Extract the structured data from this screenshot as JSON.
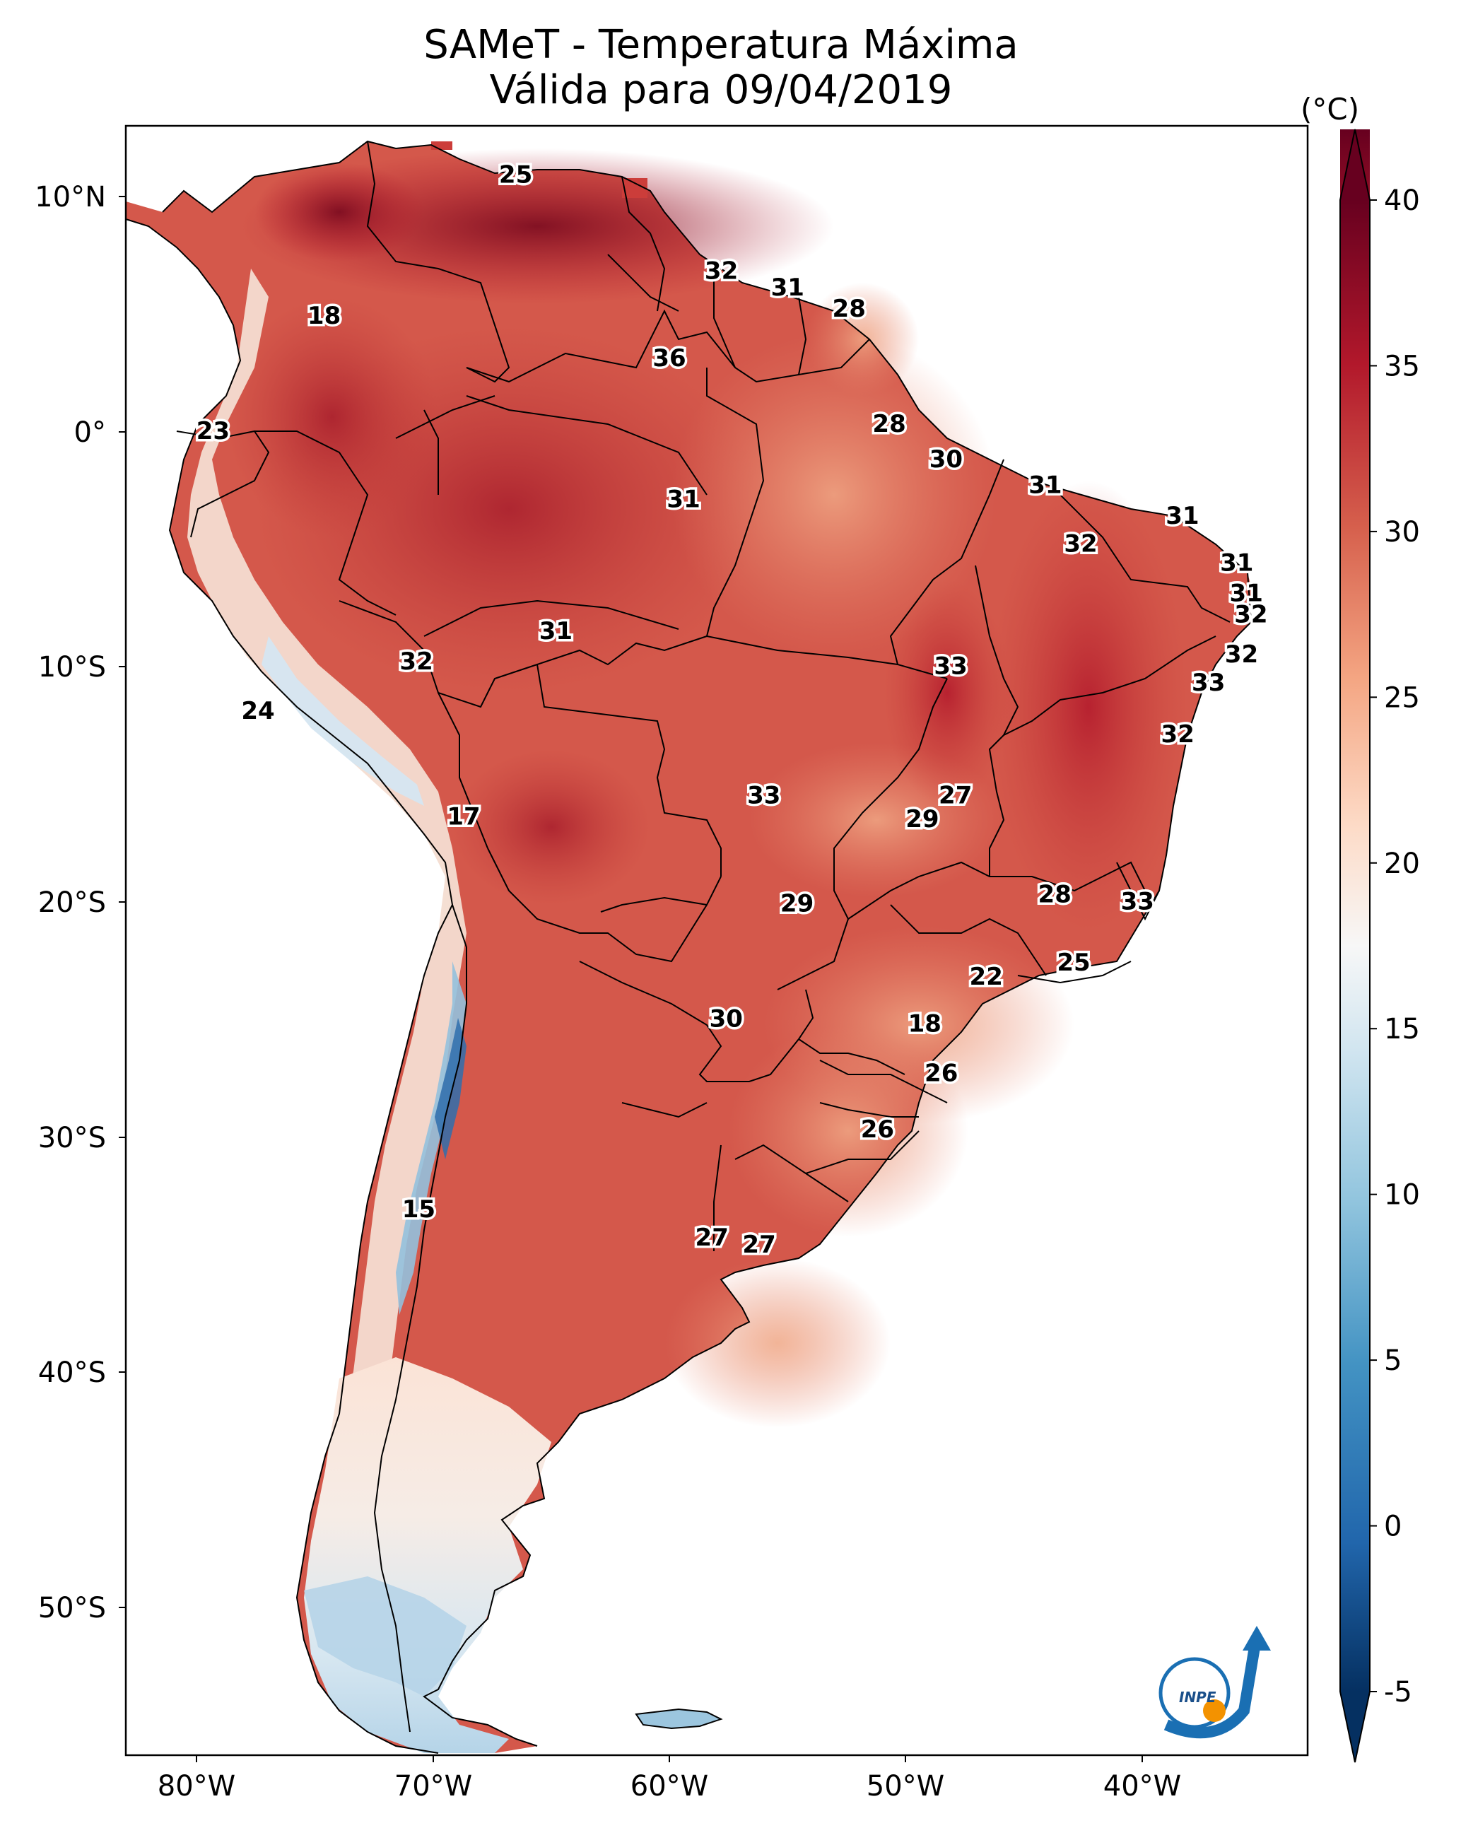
{
  "title": "SAMeT - Temperatura Máxima",
  "subtitle": "Válida para 09/04/2019",
  "colorbar": {
    "unit_label": "(°C)",
    "ticks": [
      "40",
      "35",
      "30",
      "25",
      "20",
      "15",
      "10",
      "5",
      "0",
      "-5"
    ],
    "range": [
      -5,
      40
    ],
    "colormap": "RdBu_r",
    "extend": "both"
  },
  "axes": {
    "lat_labels": [
      "10°N",
      "0°",
      "10°S",
      "20°S",
      "30°S",
      "40°S",
      "50°S"
    ],
    "lon_labels": [
      "80°W",
      "70°W",
      "60°W",
      "50°W",
      "40°W"
    ],
    "lon_range": [
      -83,
      -33
    ],
    "lat_range": [
      -57,
      13
    ]
  },
  "logo": {
    "text": "INPE"
  },
  "chart_data": {
    "type": "heatmap",
    "title": "SAMeT - Temperatura Máxima",
    "subtitle": "Válida para 09/04/2019",
    "variable": "Temperatura Máxima",
    "unit": "°C",
    "color_scale": [
      "#053061",
      "#2166ac",
      "#4393c3",
      "#92c5de",
      "#d1e5f0",
      "#f7f7f7",
      "#fddbc7",
      "#f4a582",
      "#d6604d",
      "#b2182b",
      "#67001f"
    ],
    "point_labels": [
      {
        "text": "25",
        "lon": -66.5,
        "lat": 10.6
      },
      {
        "text": "32",
        "lon": -57.8,
        "lat": 6.5
      },
      {
        "text": "31",
        "lon": -55.0,
        "lat": 5.8
      },
      {
        "text": "28",
        "lon": -52.4,
        "lat": 4.9
      },
      {
        "text": "18",
        "lon": -74.6,
        "lat": 4.6
      },
      {
        "text": "36",
        "lon": -60.0,
        "lat": 2.8
      },
      {
        "text": "28",
        "lon": -50.7,
        "lat": 0.0
      },
      {
        "text": "23",
        "lon": -79.3,
        "lat": -0.3
      },
      {
        "text": "30",
        "lon": -48.3,
        "lat": -1.5
      },
      {
        "text": "31",
        "lon": -44.1,
        "lat": -2.6
      },
      {
        "text": "31",
        "lon": -59.4,
        "lat": -3.2
      },
      {
        "text": "31",
        "lon": -38.3,
        "lat": -3.9
      },
      {
        "text": "32",
        "lon": -42.6,
        "lat": -5.1
      },
      {
        "text": "31",
        "lon": -36.0,
        "lat": -5.9
      },
      {
        "text": "31",
        "lon": -35.6,
        "lat": -7.2
      },
      {
        "text": "32",
        "lon": -35.4,
        "lat": -8.1
      },
      {
        "text": "31",
        "lon": -64.8,
        "lat": -8.8
      },
      {
        "text": "32",
        "lon": -35.8,
        "lat": -9.8
      },
      {
        "text": "32",
        "lon": -70.7,
        "lat": -10.1
      },
      {
        "text": "33",
        "lon": -48.1,
        "lat": -10.3
      },
      {
        "text": "33",
        "lon": -37.2,
        "lat": -11.0
      },
      {
        "text": "24",
        "lon": -77.4,
        "lat": -12.2
      },
      {
        "text": "32",
        "lon": -38.5,
        "lat": -13.2
      },
      {
        "text": "33",
        "lon": -56.0,
        "lat": -15.8
      },
      {
        "text": "27",
        "lon": -47.9,
        "lat": -15.8
      },
      {
        "text": "29",
        "lon": -49.3,
        "lat": -16.8
      },
      {
        "text": "17",
        "lon": -68.7,
        "lat": -16.7
      },
      {
        "text": "28",
        "lon": -43.7,
        "lat": -20.0
      },
      {
        "text": "33",
        "lon": -40.2,
        "lat": -20.3
      },
      {
        "text": "29",
        "lon": -54.6,
        "lat": -20.4
      },
      {
        "text": "25",
        "lon": -42.9,
        "lat": -22.9
      },
      {
        "text": "22",
        "lon": -46.6,
        "lat": -23.5
      },
      {
        "text": "30",
        "lon": -57.6,
        "lat": -25.3
      },
      {
        "text": "18",
        "lon": -49.2,
        "lat": -25.5
      },
      {
        "text": "26",
        "lon": -48.5,
        "lat": -27.6
      },
      {
        "text": "26",
        "lon": -51.2,
        "lat": -30.0
      },
      {
        "text": "15",
        "lon": -70.6,
        "lat": -33.4
      },
      {
        "text": "27",
        "lon": -58.2,
        "lat": -34.6
      },
      {
        "text": "27",
        "lon": -56.2,
        "lat": -34.9
      }
    ]
  }
}
